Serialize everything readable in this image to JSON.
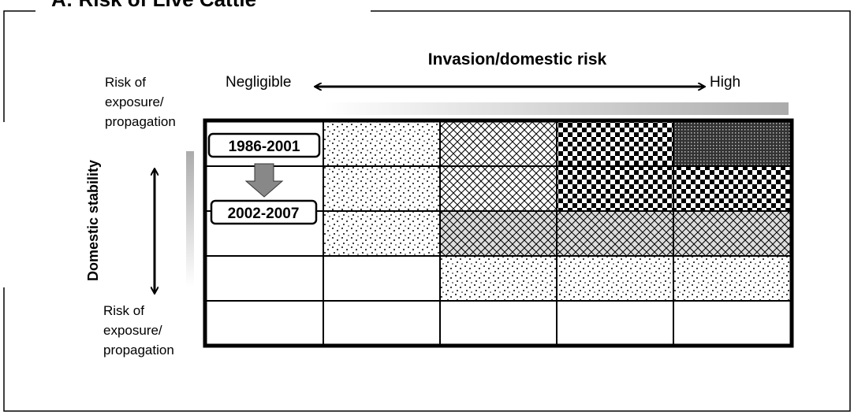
{
  "header": {
    "title": "A: Risk of Live Cattle"
  },
  "x_axis": {
    "label": "Invasion/domestic risk",
    "low": "Negligible",
    "high": "High"
  },
  "y_axis": {
    "label": "Domestic stability",
    "top_label": [
      "Risk of",
      "exposure/",
      "propagation"
    ],
    "bottom_label": [
      "Risk of",
      "exposure/",
      "propagation"
    ]
  },
  "periods": [
    "1986-2001",
    "2002-2007"
  ]
}
